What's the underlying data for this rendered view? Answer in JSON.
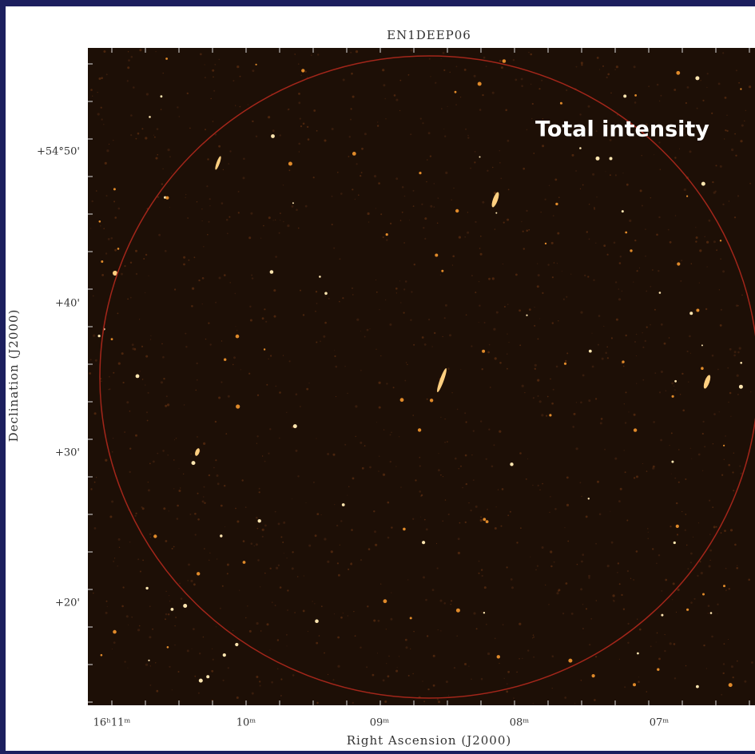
{
  "figure": {
    "title": "EN1DEEP06",
    "annotation": "Total intensity",
    "x_axis_label": "Right Ascension (J2000)",
    "y_axis_label": "Declination (J2000)",
    "x_tick_labels": [
      "16ʰ11ᵐ",
      "10ᵐ",
      "09ᵐ",
      "08ᵐ",
      "07ᵐ"
    ],
    "y_tick_labels": [
      "+54°50'",
      "+40'",
      "+30'",
      "+20'"
    ]
  }
}
